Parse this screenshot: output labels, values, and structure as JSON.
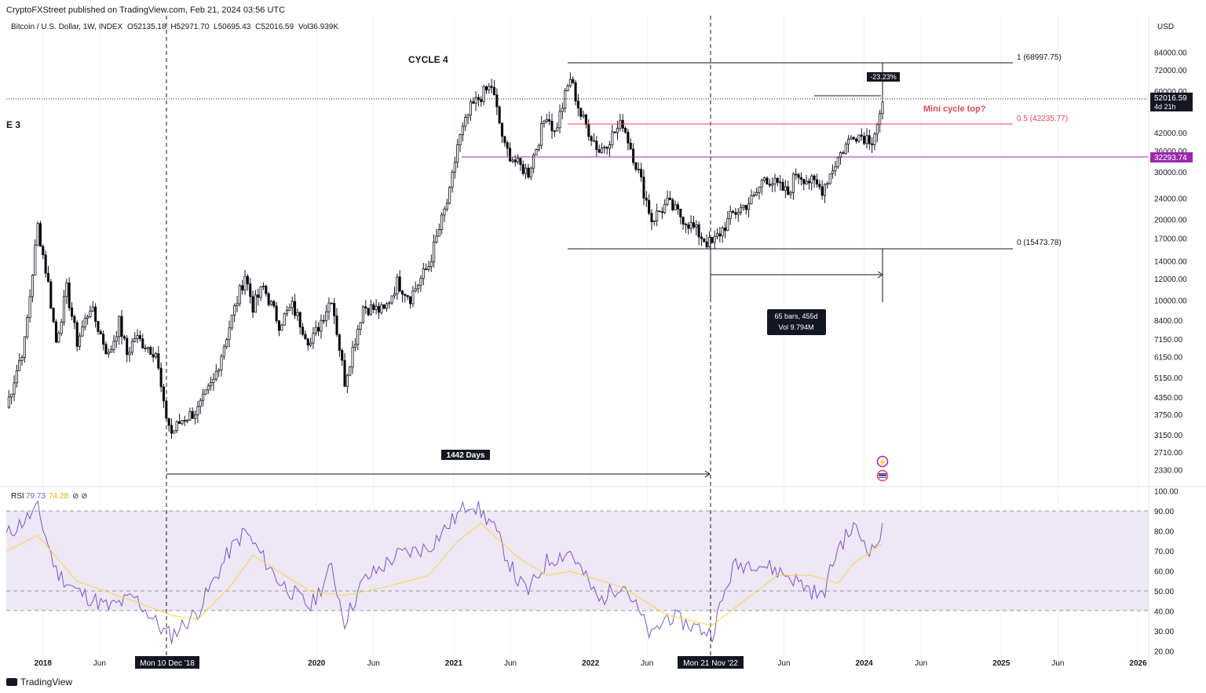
{
  "header": {
    "published": "CryptoFXStreet published on TradingView.com, Feb 21, 2024 03:56 UTC",
    "symbol": "Bitcoin / U.S. Dollar, 1W, INDEX",
    "ohlc": {
      "o": "O52135.18",
      "h": "H52971.70",
      "l": "L50695.43",
      "c": "C52016.59",
      "vol": "Vol36.939K"
    },
    "currency": "USD"
  },
  "branding": {
    "logo_text": "TradingView"
  },
  "annotations": {
    "cycle4": "CYCLE 4",
    "cycle3": "E 3",
    "mini_cycle_top": "Mini cycle top?",
    "days_label": "1442 Days",
    "bars_label": "65 bars, 455d",
    "bars_vol": "Vol 9.794M",
    "pct_change": "-23.23%",
    "date_left": "Mon 10 Dec '18",
    "date_right": "Mon 21 Nov '22"
  },
  "fib": {
    "level1": "1 (68997.75)",
    "level05": "0.5 (42235.77)",
    "level0": "0 (15473.78)"
  },
  "price_tags": {
    "last": "52016.59",
    "countdown": "4d 21h",
    "purple": "32293.74"
  },
  "rsi": {
    "label": "RSI",
    "value1": "79.73",
    "value2": "74.28",
    "icons": "⊘ ⊘"
  },
  "colors": {
    "up": "#ffffff",
    "down": "#000000",
    "fib_red": "#e8455a",
    "purple": "#9c27b0",
    "rsi_line": "#7e57c2",
    "rsi_ma": "#fbd44a",
    "rsi_band": "#ede7f6"
  },
  "chart_data": [
    {
      "type": "candlestick",
      "title": "Bitcoin / U.S. Dollar, 1W, INDEX",
      "scale": "log",
      "ylim": [
        2100,
        95000
      ],
      "y_ticks": [
        "84000.00",
        "72000.00",
        "60000.00",
        "42000.00",
        "36000.00",
        "30000.00",
        "24000.00",
        "20000.00",
        "17000.00",
        "14000.00",
        "12000.00",
        "10000.00",
        "8400.00",
        "7150.00",
        "6150.00",
        "5150.00",
        "4350.00",
        "3750.00",
        "3150.00",
        "2710.00",
        "2330.00"
      ],
      "x_ticks": [
        "2018",
        "Jun",
        "2020",
        "Jun",
        "2021",
        "Jun",
        "2022",
        "Jun",
        "Jun",
        "2024",
        "Jun",
        "2025",
        "Jun",
        "2026"
      ],
      "price_path": [
        [
          "2017-09-25",
          4000
        ],
        [
          "2017-11-13",
          7000
        ],
        [
          "2017-12-18",
          19000
        ],
        [
          "2018-01-15",
          11500
        ],
        [
          "2018-02-05",
          7000
        ],
        [
          "2018-03-05",
          11000
        ],
        [
          "2018-04-02",
          7000
        ],
        [
          "2018-05-07",
          9500
        ],
        [
          "2018-06-25",
          6200
        ],
        [
          "2018-07-23",
          8300
        ],
        [
          "2018-08-13",
          6300
        ],
        [
          "2018-09-03",
          7300
        ],
        [
          "2018-10-29",
          6400
        ],
        [
          "2018-11-19",
          4000
        ],
        [
          "2018-12-10",
          3200
        ],
        [
          "2019-01-07",
          3600
        ],
        [
          "2019-02-18",
          3900
        ],
        [
          "2019-04-01",
          5000
        ],
        [
          "2019-05-13",
          8000
        ],
        [
          "2019-06-24",
          12500
        ],
        [
          "2019-07-15",
          9500
        ],
        [
          "2019-08-12",
          11200
        ],
        [
          "2019-09-23",
          8200
        ],
        [
          "2019-10-28",
          9500
        ],
        [
          "2019-12-16",
          6900
        ],
        [
          "2020-02-10",
          10300
        ],
        [
          "2020-03-16",
          5000
        ],
        [
          "2020-05-04",
          9500
        ],
        [
          "2020-06-29",
          9100
        ],
        [
          "2020-08-03",
          11700
        ],
        [
          "2020-09-07",
          10300
        ],
        [
          "2020-10-26",
          13500
        ],
        [
          "2020-12-21",
          25000
        ],
        [
          "2021-01-11",
          38000
        ],
        [
          "2021-02-15",
          52000
        ],
        [
          "2021-03-15",
          58000
        ],
        [
          "2021-04-12",
          63000
        ],
        [
          "2021-05-17",
          37000
        ],
        [
          "2021-06-21",
          32000
        ],
        [
          "2021-07-19",
          30000
        ],
        [
          "2021-09-06",
          50000
        ],
        [
          "2021-09-27",
          42000
        ],
        [
          "2021-11-08",
          67500
        ],
        [
          "2021-12-06",
          49000
        ],
        [
          "2022-01-24",
          36000
        ],
        [
          "2022-03-28",
          46000
        ],
        [
          "2022-05-09",
          30000
        ],
        [
          "2022-06-13",
          20000
        ],
        [
          "2022-07-25",
          23000
        ],
        [
          "2022-09-26",
          19000
        ],
        [
          "2022-11-07",
          16500
        ],
        [
          "2022-11-21",
          16200
        ],
        [
          "2023-01-16",
          21000
        ],
        [
          "2023-03-13",
          24000
        ],
        [
          "2023-04-10",
          29000
        ],
        [
          "2023-06-12",
          25000
        ],
        [
          "2023-07-03",
          30000
        ],
        [
          "2023-09-11",
          26000
        ],
        [
          "2023-10-23",
          34000
        ],
        [
          "2023-12-04",
          42000
        ],
        [
          "2024-01-22",
          40000
        ],
        [
          "2024-02-19",
          52000
        ]
      ]
    },
    {
      "type": "line",
      "title": "RSI",
      "ylim": [
        20,
        100
      ],
      "y_ticks": [
        "100.00",
        "90.00",
        "80.00",
        "70.00",
        "60.00",
        "50.00",
        "40.00",
        "30.00",
        "20.00"
      ],
      "band": [
        40,
        90
      ],
      "series": [
        {
          "name": "RSI",
          "values_path": [
            [
              "2017-09-25",
              78
            ],
            [
              "2017-12-18",
              91
            ],
            [
              "2018-02-05",
              60
            ],
            [
              "2018-04-02",
              50
            ],
            [
              "2018-06-25",
              42
            ],
            [
              "2018-09-03",
              47
            ],
            [
              "2018-11-19",
              30
            ],
            [
              "2018-12-10",
              28
            ],
            [
              "2019-02-18",
              40
            ],
            [
              "2019-05-13",
              70
            ],
            [
              "2019-06-24",
              80
            ],
            [
              "2019-09-23",
              55
            ],
            [
              "2019-12-16",
              42
            ],
            [
              "2020-02-10",
              62
            ],
            [
              "2020-03-16",
              35
            ],
            [
              "2020-05-04",
              55
            ],
            [
              "2020-08-03",
              68
            ],
            [
              "2020-10-26",
              72
            ],
            [
              "2021-01-11",
              88
            ],
            [
              "2021-02-15",
              95
            ],
            [
              "2021-04-12",
              84
            ],
            [
              "2021-06-21",
              55
            ],
            [
              "2021-07-19",
              50
            ],
            [
              "2021-09-06",
              65
            ],
            [
              "2021-11-08",
              70
            ],
            [
              "2022-01-24",
              45
            ],
            [
              "2022-03-28",
              55
            ],
            [
              "2022-06-13",
              27
            ],
            [
              "2022-07-25",
              38
            ],
            [
              "2022-09-26",
              33
            ],
            [
              "2022-11-21",
              29
            ],
            [
              "2023-01-16",
              62
            ],
            [
              "2023-03-13",
              65
            ],
            [
              "2023-06-12",
              58
            ],
            [
              "2023-09-11",
              47
            ],
            [
              "2023-10-23",
              72
            ],
            [
              "2023-12-04",
              82
            ],
            [
              "2024-01-22",
              70
            ],
            [
              "2024-02-19",
              80
            ]
          ]
        },
        {
          "name": "RSI-based MA",
          "values_path": [
            [
              "2017-09-25",
              70
            ],
            [
              "2017-12-18",
              78
            ],
            [
              "2018-04-02",
              55
            ],
            [
              "2018-09-03",
              45
            ],
            [
              "2018-12-10",
              38
            ],
            [
              "2019-02-18",
              36
            ],
            [
              "2019-05-13",
              52
            ],
            [
              "2019-07-15",
              68
            ],
            [
              "2019-12-16",
              50
            ],
            [
              "2020-03-16",
              48
            ],
            [
              "2020-06-29",
              52
            ],
            [
              "2020-10-26",
              58
            ],
            [
              "2021-01-11",
              75
            ],
            [
              "2021-03-15",
              84
            ],
            [
              "2021-06-21",
              67
            ],
            [
              "2021-09-06",
              58
            ],
            [
              "2021-11-08",
              60
            ],
            [
              "2022-03-28",
              52
            ],
            [
              "2022-07-25",
              38
            ],
            [
              "2022-11-21",
              33
            ],
            [
              "2023-02-13",
              45
            ],
            [
              "2023-05-15",
              58
            ],
            [
              "2023-08-14",
              58
            ],
            [
              "2023-10-23",
              54
            ],
            [
              "2023-12-04",
              64
            ],
            [
              "2024-02-19",
              74
            ]
          ]
        }
      ]
    }
  ]
}
